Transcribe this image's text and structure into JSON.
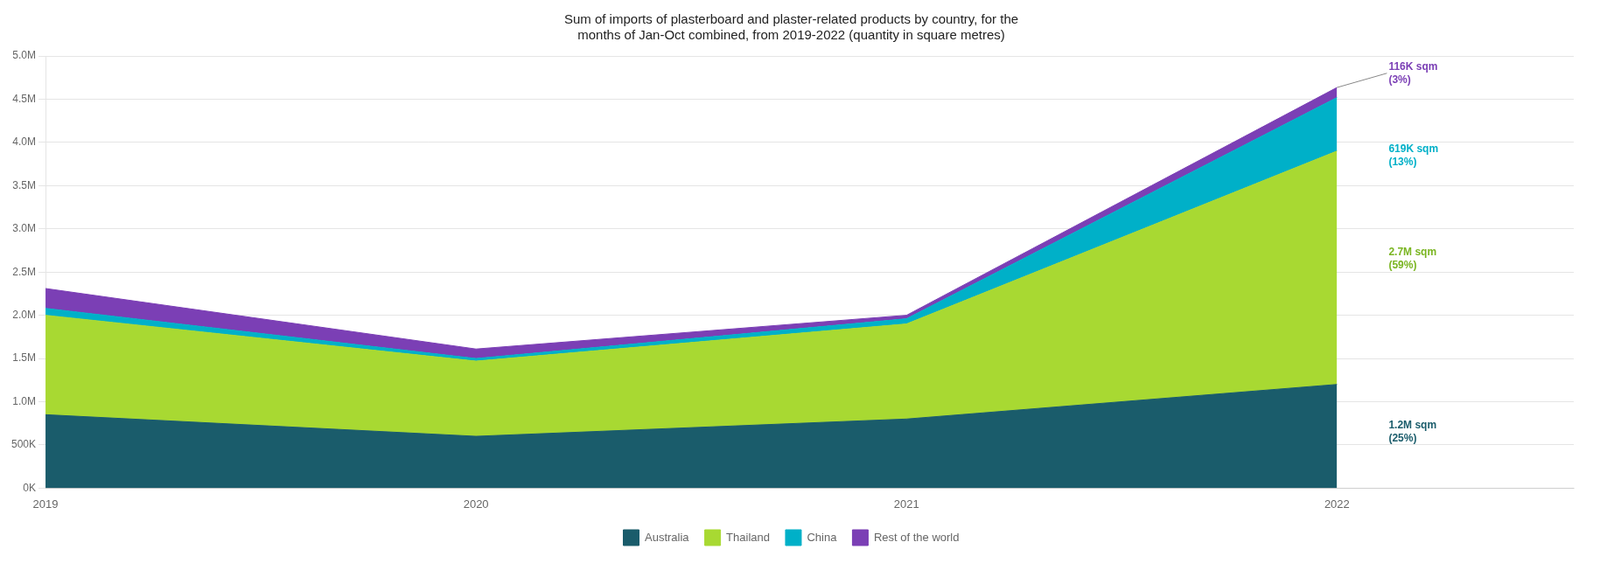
{
  "chart_data": {
    "type": "area",
    "title": "Sum of imports of plasterboard and plaster-related products by country, for the\nmonths of Jan-Oct combined, from 2019-2022 (quantity in square metres)",
    "x": [
      2019,
      2020,
      2021,
      2022
    ],
    "series": [
      {
        "name": "Australia",
        "color": "#1a5c6b",
        "values": [
          850000,
          600000,
          800000,
          1200000
        ]
      },
      {
        "name": "Thailand",
        "color": "#a8d932",
        "values": [
          1150000,
          870000,
          1100000,
          2700000
        ]
      },
      {
        "name": "China",
        "color": "#00b0c8",
        "values": [
          80000,
          30000,
          60000,
          619000
        ]
      },
      {
        "name": "Rest of the world",
        "color": "#7b3fb5",
        "values": [
          230000,
          110000,
          40000,
          116000
        ]
      }
    ],
    "xlim": [
      2019,
      2022.55
    ],
    "xticks": [
      2019,
      2020,
      2021,
      2022
    ],
    "ylim": [
      0,
      5000000
    ],
    "yticks": [
      {
        "value": 0,
        "label": "0K"
      },
      {
        "value": 500000,
        "label": "500K"
      },
      {
        "value": 1000000,
        "label": "1.0M"
      },
      {
        "value": 1500000,
        "label": "1.5M"
      },
      {
        "value": 2000000,
        "label": "2.0M"
      },
      {
        "value": 2500000,
        "label": "2.5M"
      },
      {
        "value": 3000000,
        "label": "3.0M"
      },
      {
        "value": 3500000,
        "label": "3.5M"
      },
      {
        "value": 4000000,
        "label": "4.0M"
      },
      {
        "value": 4500000,
        "label": "4.5M"
      },
      {
        "value": 5000000,
        "label": "5.0M"
      }
    ],
    "stacked": true,
    "grid": true,
    "legend": "bottom",
    "annotations": [
      {
        "text": "116K sqm\n(3%)",
        "color": "#7b3fb5",
        "x": 2022.12,
        "y": 4800000,
        "arrow_x": 2022
      },
      {
        "text": "619K sqm\n(13%)",
        "color": "#00b0c8",
        "x": 2022.12,
        "y": 3850000
      },
      {
        "text": "2.7M sqm\n(59%)",
        "color": "#7ab521",
        "x": 2022.12,
        "y": 2650000
      },
      {
        "text": "1.2M sqm\n(25%)",
        "color": "#1a5c6b",
        "x": 2022.12,
        "y": 650000
      }
    ]
  }
}
